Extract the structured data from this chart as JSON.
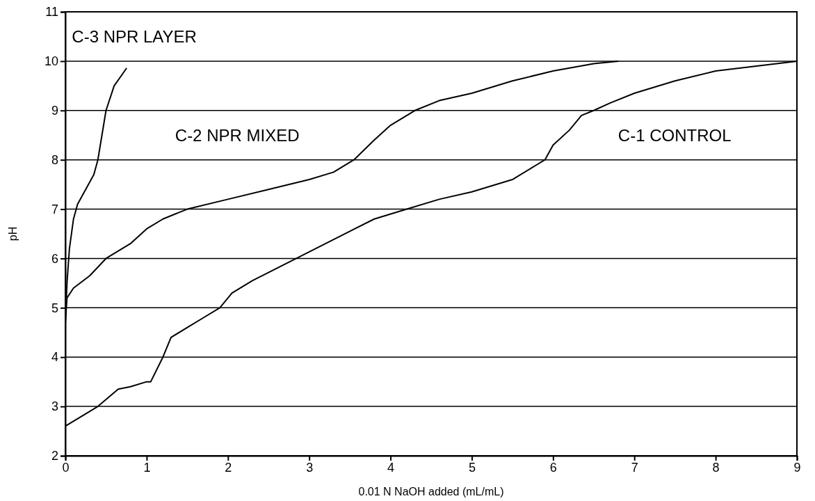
{
  "chart_data": {
    "type": "line",
    "xlabel": "0.01 N NaOH added (mL/mL)",
    "ylabel": "pH",
    "xlim": [
      0,
      9
    ],
    "ylim": [
      2,
      11
    ],
    "xticks": [
      0,
      1,
      2,
      3,
      4,
      5,
      6,
      7,
      8,
      9
    ],
    "yticks": [
      2,
      3,
      4,
      5,
      6,
      7,
      8,
      9,
      10,
      11
    ],
    "grid": "y",
    "marker": "none",
    "line_style": "solid",
    "series": [
      {
        "name": "C-3 NPR LAYER",
        "color": "#000000",
        "x": [
          0,
          0.02,
          0.05,
          0.1,
          0.15,
          0.25,
          0.35,
          0.4,
          0.45,
          0.5,
          0.6,
          0.75
        ],
        "values": [
          4.7,
          5.5,
          6.2,
          6.8,
          7.1,
          7.4,
          7.7,
          8.0,
          8.5,
          9.0,
          9.5,
          9.85
        ]
      },
      {
        "name": "C-2 NPR MIXED",
        "color": "#000000",
        "x": [
          0,
          0.02,
          0.1,
          0.3,
          0.5,
          0.8,
          1.0,
          1.2,
          1.5,
          2.0,
          2.5,
          3.0,
          3.3,
          3.55,
          3.8,
          4.0,
          4.3,
          4.6,
          5.0,
          5.5,
          6.0,
          6.5,
          6.8
        ],
        "values": [
          4.7,
          5.2,
          5.4,
          5.65,
          6.0,
          6.3,
          6.6,
          6.8,
          7.0,
          7.2,
          7.4,
          7.6,
          7.75,
          8.0,
          8.4,
          8.7,
          9.0,
          9.2,
          9.35,
          9.6,
          9.8,
          9.95,
          10.0
        ]
      },
      {
        "name": "C-1 CONTROL",
        "color": "#000000",
        "x": [
          0,
          0.4,
          0.65,
          0.8,
          1.0,
          1.05,
          1.2,
          1.3,
          1.5,
          1.7,
          1.9,
          2.05,
          2.3,
          2.6,
          2.9,
          3.2,
          3.5,
          3.8,
          4.2,
          4.6,
          5.0,
          5.5,
          5.8,
          5.9,
          6.0,
          6.2,
          6.35,
          6.5,
          6.7,
          7.0,
          7.5,
          8.0,
          8.5,
          9.0
        ],
        "values": [
          2.6,
          3.0,
          3.35,
          3.4,
          3.5,
          3.5,
          4.0,
          4.4,
          4.6,
          4.8,
          5.0,
          5.3,
          5.55,
          5.8,
          6.05,
          6.3,
          6.55,
          6.8,
          7.0,
          7.2,
          7.35,
          7.6,
          7.9,
          8.0,
          8.3,
          8.6,
          8.9,
          9.0,
          9.15,
          9.35,
          9.6,
          9.8,
          9.9,
          10.0
        ]
      }
    ]
  }
}
